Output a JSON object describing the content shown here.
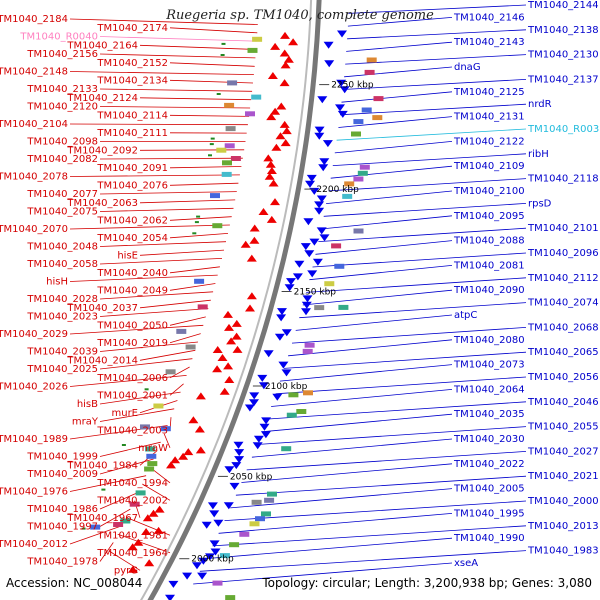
{
  "title": "Ruegeria sp. TM1040, complete genome",
  "footer": {
    "accession": "Accession: NC_008044",
    "topology": "Topology: circular; Length: 3,200,938 bp; Genes: 3,080"
  },
  "colors": {
    "left_labels": "#d40000",
    "right_labels": "#0000cc",
    "rna_label_left": "#ff80c0",
    "rna_label_right": "#22bbdd",
    "backbone": "#777777",
    "arrow_forward": "#ee0000",
    "arrow_reverse": "#0000ee",
    "tick_marks": "#228822"
  },
  "scale_ticks": [
    "2250 kbp",
    "2200 kbp",
    "2150 kbp",
    "2100 kbp",
    "2050 kbp",
    "2000 kbp"
  ],
  "left_labels": [
    "TM1040_2184",
    "TM1040_2174",
    "TM1040_R0040",
    "TM1040_2164",
    "TM1040_2156",
    "TM1040_2152",
    "TM1040_2148",
    "TM1040_2134",
    "TM1040_2133",
    "TM1040_2124",
    "TM1040_2120",
    "TM1040_2114",
    "TM1040_2104",
    "TM1040_2111",
    "TM1040_2098",
    "TM1040_2092",
    "TM1040_2082",
    "TM1040_2091",
    "TM1040_2078",
    "TM1040_2076",
    "TM1040_2077",
    "TM1040_2063",
    "TM1040_2075",
    "TM1040_2062",
    "TM1040_2070",
    "TM1040_2054",
    "TM1040_2048",
    "hisE",
    "TM1040_2058",
    "TM1040_2040",
    "hisH",
    "TM1040_2049",
    "TM1040_2028",
    "TM1040_2037",
    "TM1040_2023",
    "TM1040_2050",
    "TM1040_2029",
    "TM1040_2019",
    "TM1040_2039",
    "TM1040_2014",
    "TM1040_2025",
    "TM1040_2006",
    "TM1040_2026",
    "TM1040_2001",
    "hisB",
    "murE",
    "mraY",
    "TM1040_2003",
    "TM1040_1989",
    "mraW",
    "TM1040_1999",
    "TM1040_1984",
    "TM1040_2009",
    "TM1040_1994",
    "TM1040_1976",
    "TM1040_2002",
    "TM1040_1986",
    "TM1040_1967",
    "TM1040_1997",
    "TM1040_1981",
    "TM1040_2012",
    "TM1040_1964",
    "TM1040_1978",
    "pyrG"
  ],
  "right_labels": [
    "TM1040_2144",
    "TM1040_2146",
    "TM1040_2138",
    "TM1040_2143",
    "TM1040_2130",
    "dnaG",
    "TM1040_2137",
    "TM1040_2125",
    "nrdR",
    "TM1040_2131",
    "TM1040_R0038",
    "TM1040_2122",
    "ribH",
    "TM1040_2109",
    "TM1040_2118",
    "TM1040_2100",
    "rpsD",
    "TM1040_2095",
    "TM1040_2101",
    "TM1040_2088",
    "TM1040_2096",
    "TM1040_2081",
    "TM1040_2112",
    "TM1040_2090",
    "TM1040_2074",
    "atpC",
    "TM1040_2068",
    "TM1040_2080",
    "TM1040_2065",
    "TM1040_2073",
    "TM1040_2056",
    "TM1040_2064",
    "TM1040_2046",
    "TM1040_2035",
    "TM1040_2055",
    "TM1040_2030",
    "TM1040_2027",
    "TM1040_2022",
    "TM1040_2021",
    "TM1040_2005",
    "TM1040_2000",
    "TM1040_1995",
    "TM1040_2013",
    "TM1040_1990",
    "TM1040_1983",
    "xseA"
  ]
}
